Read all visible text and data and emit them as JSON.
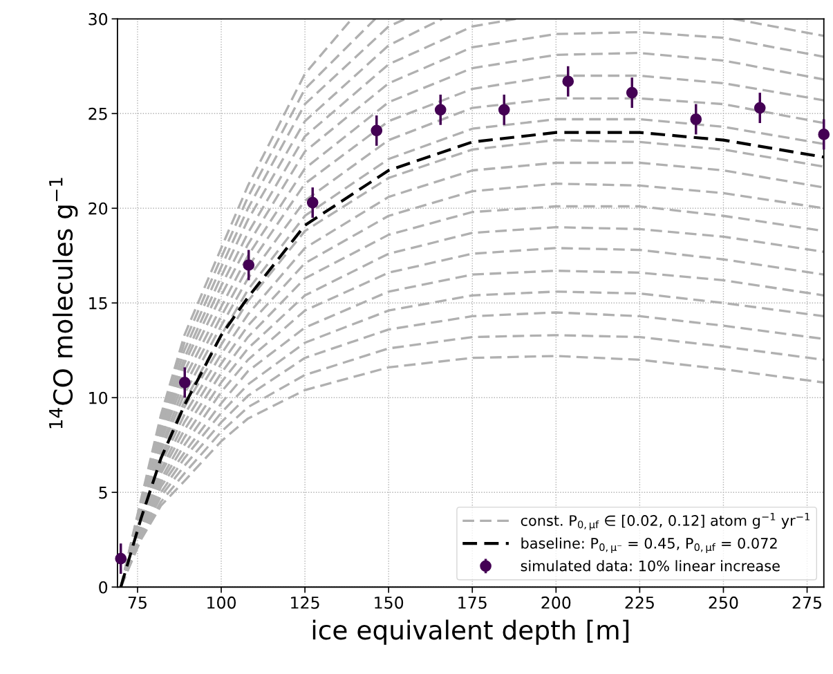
{
  "chart_data": {
    "type": "line",
    "xlabel": "ice equivalent depth [m]",
    "ylabel": "$^{14}$CO molecules g$^{−1}$",
    "xlim": [
      69,
      280
    ],
    "xticks": [
      75,
      100,
      125,
      150,
      175,
      200,
      225,
      250,
      275
    ],
    "ylim": [
      0,
      30
    ],
    "yticks": [
      0,
      5,
      10,
      15,
      20,
      25,
      30
    ],
    "grid": true,
    "legend": "bottom right",
    "line_style": "dashed",
    "x": [
      70,
      76,
      82,
      89,
      100,
      108,
      125,
      150,
      175,
      200,
      225,
      250,
      280
    ],
    "series": [
      {
        "name": "const. P$_{0,μf}$ ∈ [0.02, 0.12] atom g$^{−1}$ yr$^{−1}$",
        "color": "#b0b0b0",
        "values": [
          0,
          2.5,
          4.3,
          5.6,
          7.7,
          8.9,
          10.4,
          11.6,
          12.1,
          12.2,
          12.0,
          11.5,
          10.8
        ]
      },
      {
        "color": "#b0b0b0",
        "values": [
          0,
          2.6,
          4.5,
          6.0,
          8.2,
          9.5,
          11.2,
          12.6,
          13.2,
          13.3,
          13.2,
          12.7,
          12.0
        ]
      },
      {
        "color": "#b0b0b0",
        "values": [
          0,
          2.7,
          4.8,
          6.4,
          8.7,
          10.1,
          12.1,
          13.6,
          14.3,
          14.5,
          14.3,
          13.8,
          13.1
        ]
      },
      {
        "color": "#b0b0b0",
        "values": [
          0,
          2.8,
          5.0,
          6.8,
          9.2,
          10.7,
          12.9,
          14.6,
          15.4,
          15.6,
          15.5,
          15.0,
          14.3
        ]
      },
      {
        "color": "#b0b0b0",
        "values": [
          0,
          2.9,
          5.3,
          7.1,
          9.7,
          11.4,
          13.7,
          15.6,
          16.5,
          16.7,
          16.6,
          16.2,
          15.4
        ]
      },
      {
        "color": "#b0b0b0",
        "values": [
          0,
          3.0,
          5.5,
          7.5,
          10.3,
          12.0,
          14.6,
          16.6,
          17.6,
          17.9,
          17.8,
          17.3,
          16.5
        ]
      },
      {
        "color": "#b0b0b0",
        "values": [
          0,
          3.1,
          5.7,
          7.9,
          10.8,
          12.6,
          15.4,
          17.6,
          18.7,
          19.0,
          18.9,
          18.5,
          17.7
        ]
      },
      {
        "color": "#b0b0b0",
        "values": [
          0,
          3.2,
          6.0,
          8.3,
          11.3,
          13.2,
          16.3,
          18.6,
          19.8,
          20.1,
          20.1,
          19.6,
          18.8
        ]
      },
      {
        "color": "#b0b0b0",
        "values": [
          0,
          3.3,
          6.2,
          8.7,
          11.8,
          13.8,
          17.1,
          19.6,
          20.9,
          21.3,
          21.2,
          20.8,
          20.0
        ]
      },
      {
        "color": "#b0b0b0",
        "values": [
          0,
          3.5,
          6.5,
          9.1,
          12.3,
          14.4,
          17.9,
          20.6,
          22.0,
          22.4,
          22.4,
          22.0,
          21.1
        ]
      },
      {
        "color": "#b0b0b0",
        "values": [
          0,
          3.6,
          6.7,
          9.5,
          12.8,
          15.1,
          18.8,
          21.6,
          23.1,
          23.6,
          23.5,
          23.1,
          22.2
        ]
      },
      {
        "color": "#b0b0b0",
        "values": [
          0,
          3.7,
          6.9,
          9.8,
          13.3,
          15.7,
          19.6,
          22.6,
          24.2,
          24.7,
          24.7,
          24.3,
          23.4
        ]
      },
      {
        "color": "#b0b0b0",
        "values": [
          0,
          3.8,
          7.2,
          10.2,
          13.8,
          16.3,
          20.4,
          23.6,
          25.3,
          25.8,
          25.8,
          25.5,
          24.5
        ]
      },
      {
        "color": "#b0b0b0",
        "values": [
          0,
          3.9,
          7.4,
          10.6,
          14.3,
          16.9,
          21.3,
          24.6,
          26.3,
          27.0,
          27.0,
          26.6,
          25.7
        ]
      },
      {
        "color": "#b0b0b0",
        "values": [
          0,
          4.0,
          7.7,
          11.0,
          14.8,
          17.5,
          22.1,
          25.6,
          27.4,
          28.1,
          28.2,
          27.8,
          26.8
        ]
      },
      {
        "color": "#b0b0b0",
        "values": [
          0,
          4.1,
          7.9,
          11.4,
          15.4,
          18.1,
          23.0,
          26.6,
          28.5,
          29.2,
          29.3,
          29.0,
          28.0
        ]
      },
      {
        "color": "#b0b0b0",
        "x": [
          70,
          76,
          82,
          89,
          100,
          108,
          125,
          150,
          175,
          188,
          220,
          253,
          280
        ],
        "values": [
          0,
          4.2,
          8.1,
          11.8,
          15.9,
          18.7,
          23.8,
          27.6,
          29.6,
          30,
          null,
          30,
          29.1
        ]
      },
      {
        "color": "#b0b0b0",
        "x": [
          70,
          76,
          82,
          89,
          100,
          108,
          125,
          150,
          166
        ],
        "values": [
          0,
          4.3,
          8.4,
          12.1,
          16.4,
          19.4,
          24.6,
          28.6,
          30
        ]
      },
      {
        "color": "#b0b0b0",
        "x": [
          70,
          76,
          82,
          89,
          100,
          108,
          125,
          150,
          155
        ],
        "values": [
          0,
          4.4,
          8.6,
          12.5,
          16.9,
          20.0,
          25.5,
          29.6,
          30
        ]
      },
      {
        "color": "#b0b0b0",
        "x": [
          70,
          76,
          82,
          89,
          100,
          108,
          125,
          146
        ],
        "values": [
          0,
          4.5,
          8.9,
          12.9,
          17.4,
          20.6,
          26.3,
          30
        ]
      },
      {
        "color": "#b0b0b0",
        "x": [
          70,
          76,
          82,
          89,
          100,
          108,
          125,
          139
        ],
        "values": [
          0,
          4.6,
          9.1,
          13.3,
          17.9,
          21.2,
          27.1,
          30
        ]
      },
      {
        "name": "baseline: P$_{0,μ⁻}$ = 0.45, P$_{0,μf}$ = 0.072",
        "color": "#000000",
        "values": [
          0,
          3.6,
          6.8,
          9.6,
          13.3,
          15.3,
          19.1,
          22.0,
          23.5,
          24.0,
          24.0,
          23.6,
          22.7
        ]
      },
      {
        "name": "simulated data: 10% linear increase",
        "type": "scatter",
        "marker": "circle",
        "color": "#440154",
        "x": [
          70,
          89.1,
          108.2,
          127.3,
          146.4,
          165.5,
          184.5,
          203.6,
          222.7,
          241.8,
          260.9,
          280
        ],
        "values": [
          1.5,
          10.8,
          17.0,
          20.3,
          24.1,
          25.2,
          25.2,
          26.7,
          26.1,
          24.7,
          25.3,
          23.9
        ],
        "errors": [
          0.8,
          0.8,
          0.8,
          0.8,
          0.8,
          0.8,
          0.8,
          0.8,
          0.8,
          0.8,
          0.8,
          0.8
        ]
      }
    ]
  }
}
